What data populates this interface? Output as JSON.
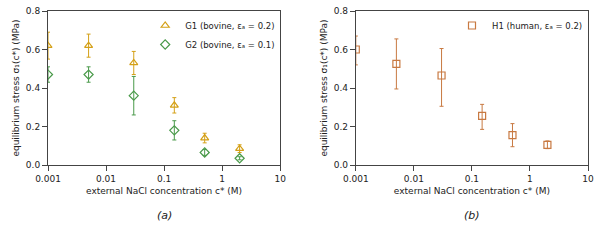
{
  "chart_data": [
    {
      "type": "scatter",
      "xlabel": "external NaCl concentration c* (M)",
      "ylabel": "equilibrium stress σ₁(c*) (MPa)",
      "annotations": [
        "(a)"
      ],
      "log": "x",
      "xlim": [
        0.001,
        10
      ],
      "xticks": [
        0.001,
        0.01,
        0.1,
        1,
        10
      ],
      "ylim": [
        0,
        0.8
      ],
      "yticks": [
        {
          "value": 0,
          "label": "0.0"
        },
        0.2,
        0.4,
        0.6,
        0.8
      ],
      "grid": false,
      "legend": "upper right",
      "series": [
        {
          "name": "G1 (bovine, εₐ = 0.2)",
          "color": "#D4A017",
          "marker": "triangle",
          "x": [
            0.001,
            0.005,
            0.03,
            0.15,
            0.5,
            2.0
          ],
          "values": [
            0.62,
            0.62,
            0.53,
            0.31,
            0.14,
            0.085
          ],
          "err_lo": [
            0.07,
            0.06,
            0.06,
            0.04,
            0.025,
            0.02
          ],
          "err_hi": [
            0.07,
            0.06,
            0.06,
            0.04,
            0.025,
            0.02
          ]
        },
        {
          "name": "G2 (bovine, εₐ = 0.1)",
          "color": "#4A9A4A",
          "marker": "diamond",
          "x": [
            0.001,
            0.005,
            0.03,
            0.15,
            0.5,
            2.0
          ],
          "values": [
            0.47,
            0.47,
            0.36,
            0.18,
            0.065,
            0.035
          ],
          "err_lo": [
            0.04,
            0.04,
            0.1,
            0.05,
            0.015,
            0.008
          ],
          "err_hi": [
            0.04,
            0.04,
            0.1,
            0.05,
            0.015,
            0.008
          ]
        }
      ]
    },
    {
      "type": "scatter",
      "xlabel": "external NaCl concentration c* (M)",
      "ylabel": "equilibrium stress σ₁(c*) (MPa)",
      "annotations": [
        "(b)"
      ],
      "log": "x",
      "xlim": [
        0.001,
        10
      ],
      "xticks": [
        0.001,
        0.01,
        0.1,
        1,
        10
      ],
      "ylim": [
        0,
        0.8
      ],
      "yticks": [
        {
          "value": 0,
          "label": "0.0"
        },
        0.2,
        0.4,
        0.6,
        0.8
      ],
      "grid": false,
      "legend": "upper right",
      "series": [
        {
          "name": "H1 (human, εₐ = 0.2)",
          "color": "#C87941",
          "marker": "square",
          "x": [
            0.001,
            0.005,
            0.03,
            0.15,
            0.5,
            2.0
          ],
          "values": [
            0.6,
            0.525,
            0.465,
            0.255,
            0.155,
            0.105
          ],
          "err_lo": [
            0.08,
            0.13,
            0.16,
            0.07,
            0.06,
            0.02
          ],
          "err_hi": [
            0.07,
            0.13,
            0.14,
            0.06,
            0.06,
            0.02
          ]
        }
      ]
    }
  ]
}
